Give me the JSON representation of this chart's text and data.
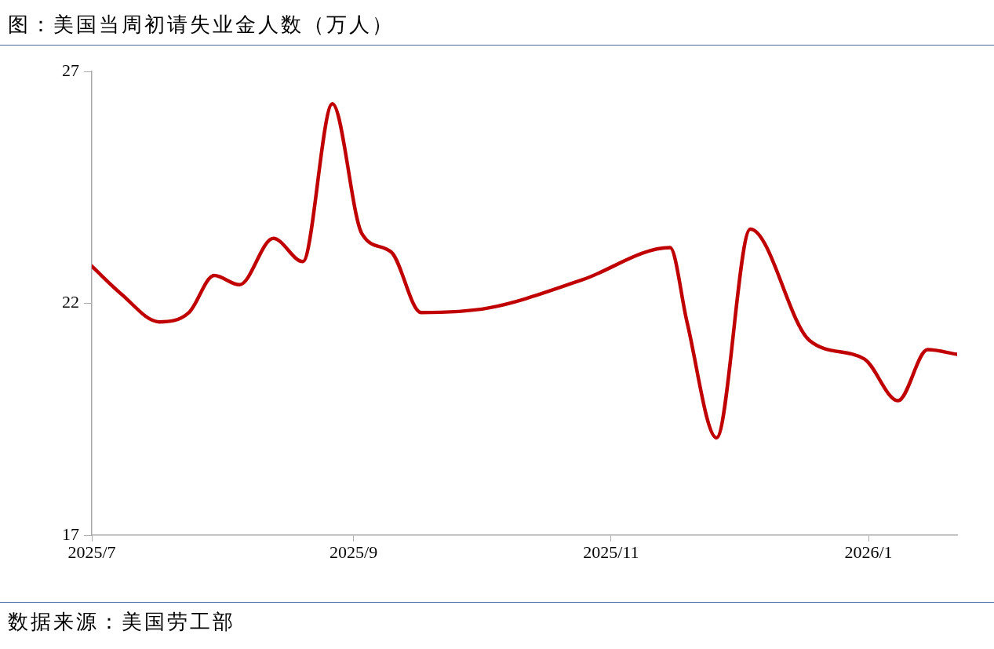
{
  "chart_data": {
    "type": "line",
    "title": "图：美国当周初请失业金人数（万人）",
    "x": [
      "2025-07-01",
      "2025-07-08",
      "2025-07-17",
      "2025-07-24",
      "2025-07-30",
      "2025-08-05",
      "2025-08-13",
      "2025-08-20",
      "2025-08-27",
      "2025-09-03",
      "2025-09-10",
      "2025-09-17",
      "2025-10-03",
      "2025-10-25",
      "2025-11-15",
      "2025-11-19",
      "2025-11-26",
      "2025-12-04",
      "2025-12-18",
      "2025-12-31",
      "2026-01-08",
      "2026-01-15",
      "2026-01-22"
    ],
    "series": [
      {
        "color": "#c00000",
        "values": [
          22.8,
          22.2,
          21.6,
          21.8,
          22.6,
          22.4,
          23.4,
          22.9,
          26.3,
          23.5,
          23.1,
          21.8,
          21.9,
          22.5,
          23.2,
          21.6,
          19.1,
          23.6,
          21.2,
          20.8,
          19.9,
          21.0,
          20.9
        ]
      }
    ],
    "xlim": [
      "2025-07-01",
      "2026-01-22"
    ],
    "xticks": [
      {
        "value": "2025-07-01",
        "label": "2025/7"
      },
      {
        "value": "2025-09-01",
        "label": "2025/9"
      },
      {
        "value": "2025-11-01",
        "label": "2025/11"
      },
      {
        "value": "2026-01-01",
        "label": "2026/1"
      }
    ],
    "ylim": [
      17,
      27
    ],
    "yticks": [
      17,
      22,
      27
    ],
    "grid": false,
    "legend": false,
    "marker": "none",
    "line_style": "solid",
    "annotations": [
      "数据来源：美国劳工部"
    ]
  }
}
